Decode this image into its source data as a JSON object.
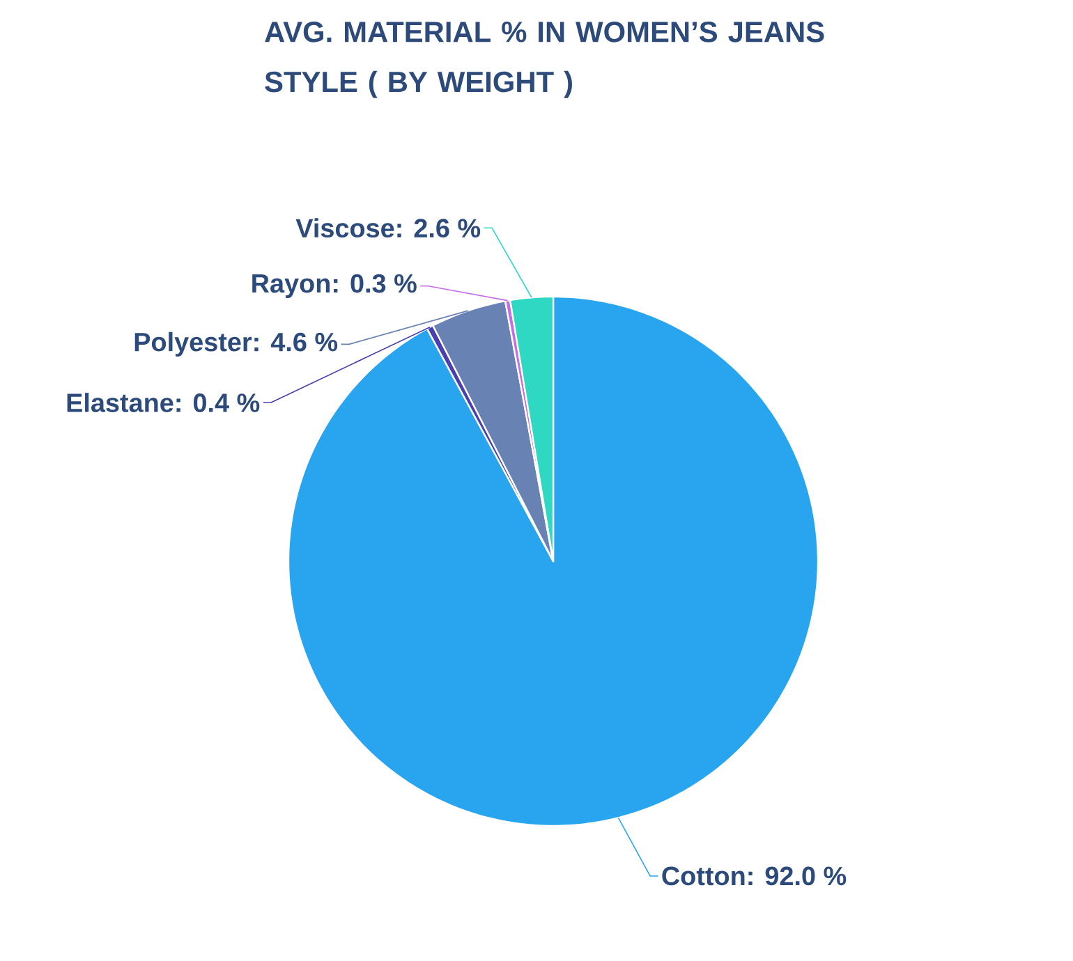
{
  "chart_data": {
    "type": "pie",
    "title": "AVG. MATERIAL % IN WOMEN’S JEANS STYLE ( BY WEIGHT )",
    "categories": [
      "Cotton",
      "Elastane",
      "Polyester",
      "Rayon",
      "Viscose"
    ],
    "values": [
      92.0,
      0.4,
      4.6,
      0.3,
      2.6
    ],
    "value_labels": [
      ": 92.0 %",
      ": 0.4 %",
      ": 4.6 %",
      ": 0.3 %",
      ": 2.6 %"
    ],
    "colors": [
      "#29a5f0",
      "#4a3fb0",
      "#6882b4",
      "#c46ee8",
      "#2ed8c3"
    ]
  }
}
